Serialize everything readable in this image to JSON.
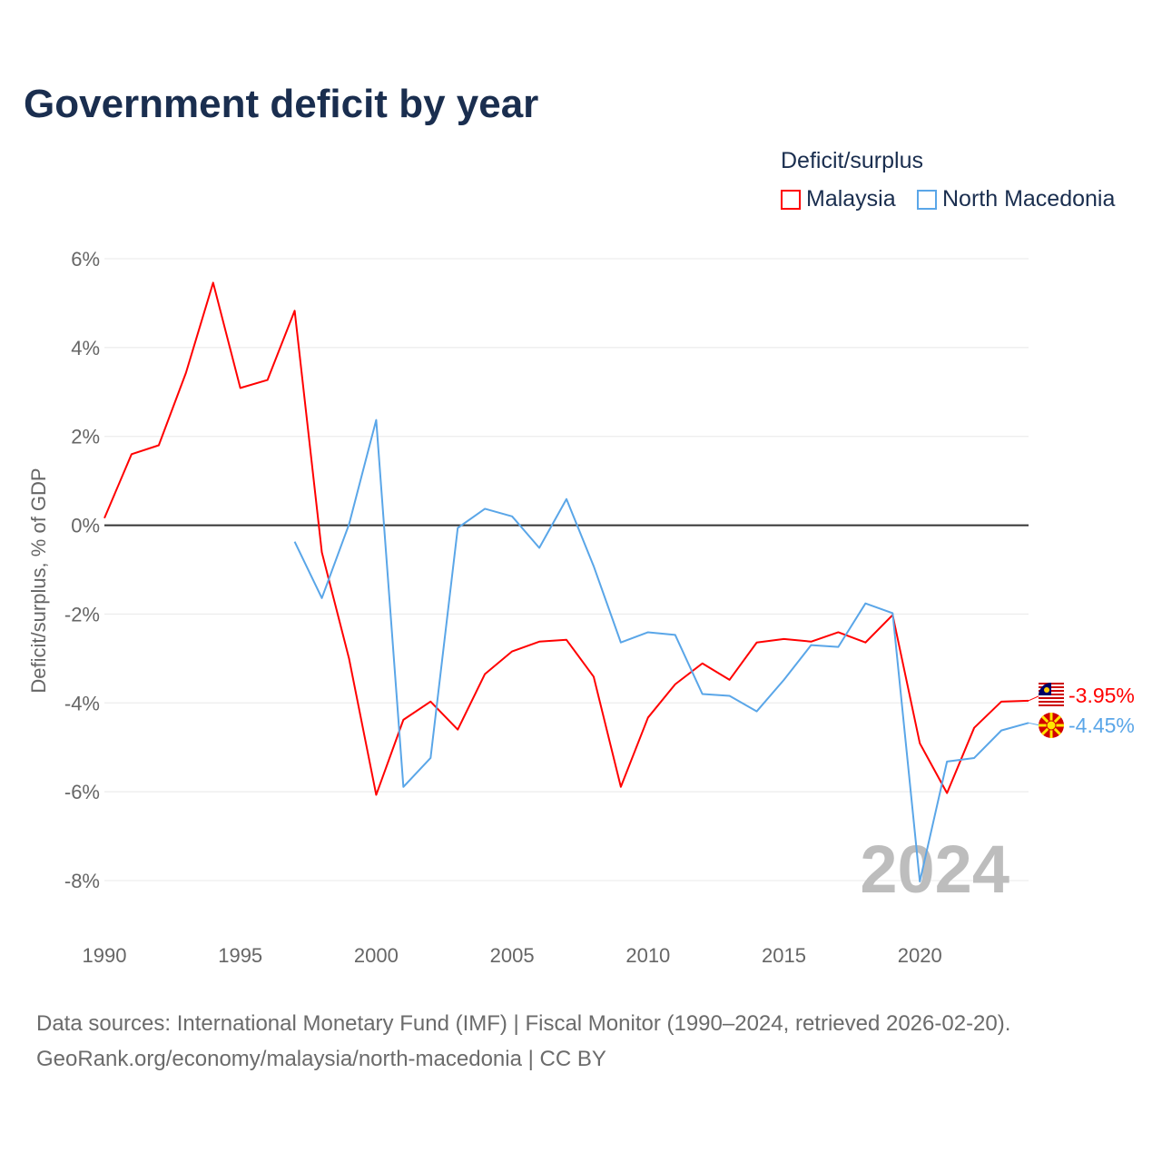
{
  "chart_data": {
    "type": "line",
    "title": "Government deficit by year",
    "ylabel": "Deficit/surplus, % of GDP",
    "xlabel": "",
    "xlim": [
      1990,
      2024
    ],
    "ylim": [
      -8,
      6
    ],
    "x_ticks": [
      1990,
      1995,
      2000,
      2005,
      2010,
      2015,
      2020
    ],
    "x_tick_labels": [
      "1990",
      "1995",
      "2000",
      "2005",
      "2010",
      "2015",
      "2020"
    ],
    "y_ticks": [
      6,
      4,
      2,
      0,
      -2,
      -4,
      -6,
      -8
    ],
    "y_tick_labels": [
      "6%",
      "4%",
      "2%",
      "0%",
      "-2%",
      "-4%",
      "-6%",
      "-8%"
    ],
    "grid": true,
    "legend_title": "Deficit/surplus",
    "legend_position": "top-right",
    "watermark_year": "2024",
    "series": [
      {
        "name": "Malaysia",
        "color": "#ff0000",
        "end_label": "-3.95%",
        "flag": "malaysia-flag",
        "x": [
          1990,
          1991,
          1992,
          1993,
          1994,
          1995,
          1996,
          1997,
          1998,
          1999,
          2000,
          2001,
          2002,
          2003,
          2004,
          2005,
          2006,
          2007,
          2008,
          2009,
          2010,
          2011,
          2012,
          2013,
          2014,
          2015,
          2016,
          2017,
          2018,
          2019,
          2020,
          2021,
          2022,
          2023,
          2024
        ],
        "values": [
          0.16,
          1.6,
          1.8,
          3.43,
          5.46,
          3.09,
          3.27,
          4.83,
          -0.61,
          -3.0,
          -6.07,
          -4.38,
          -3.97,
          -4.6,
          -3.35,
          -2.84,
          -2.62,
          -2.58,
          -3.41,
          -5.89,
          -4.33,
          -3.58,
          -3.11,
          -3.48,
          -2.64,
          -2.56,
          -2.62,
          -2.41,
          -2.64,
          -2.02,
          -4.91,
          -6.03,
          -4.56,
          -3.97,
          -3.95
        ]
      },
      {
        "name": "North Macedonia",
        "color": "#5aa6e8",
        "end_label": "-4.45%",
        "flag": "north-macedonia-flag",
        "x": [
          1997,
          1998,
          1999,
          2000,
          2001,
          2002,
          2003,
          2004,
          2005,
          2006,
          2007,
          2008,
          2009,
          2010,
          2011,
          2012,
          2013,
          2014,
          2015,
          2016,
          2017,
          2018,
          2019,
          2020,
          2021,
          2022,
          2023,
          2024
        ],
        "values": [
          -0.37,
          -1.64,
          0.02,
          2.37,
          -5.89,
          -5.24,
          -0.06,
          0.37,
          0.2,
          -0.51,
          0.59,
          -0.92,
          -2.64,
          -2.41,
          -2.47,
          -3.8,
          -3.84,
          -4.19,
          -3.48,
          -2.7,
          -2.74,
          -1.76,
          -1.98,
          -8.02,
          -5.32,
          -5.24,
          -4.62,
          -4.45
        ]
      }
    ]
  },
  "source": {
    "line1": "Data sources: International Monetary Fund (IMF) | Fiscal Monitor (1990–2024, retrieved 2026-02-20).",
    "line2": "GeoRank.org/economy/malaysia/north-macedonia | CC BY"
  }
}
